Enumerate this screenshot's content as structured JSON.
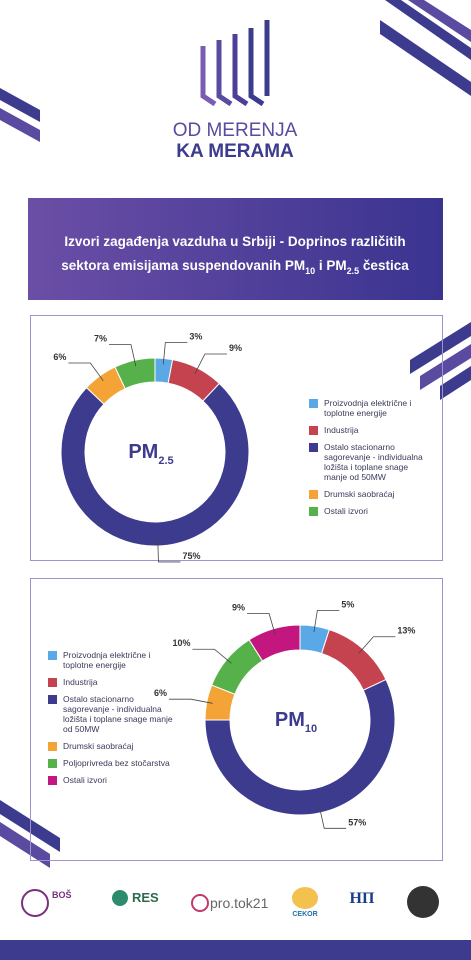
{
  "header": {
    "logo_line1": "OD MERENJA",
    "logo_line2": "KA MERAMA"
  },
  "banner": {
    "title_parts": [
      "Izvori zagađenja vazduha u Srbiji - Doprinos različitih",
      "sektora emisijama suspendovanih PM",
      "10",
      " i PM",
      "2.5",
      " čestica"
    ]
  },
  "chart_data": [
    {
      "type": "donut",
      "center_label": "PM",
      "center_subscript": "2.5",
      "categories": [
        "Proizvodnja električne i toplotne energije",
        "Industrija",
        "Ostalo stacionarno sagorevanje - individualna ložišta i toplane snage manje od 50MW",
        "Drumski saobraćaj",
        "Ostali izvori"
      ],
      "values": [
        3,
        9,
        75,
        6,
        7
      ],
      "value_labels": [
        "3%",
        "9%",
        "75%",
        "6%",
        "7%"
      ],
      "colors": [
        "#5aa9e6",
        "#c4434f",
        "#3d3b8e",
        "#f4a337",
        "#57b14a"
      ]
    },
    {
      "type": "donut",
      "center_label": "PM",
      "center_subscript": "10",
      "categories": [
        "Proizvodnja električne i toplotne energije",
        "Industrija",
        "Ostalo stacionarno sagorevanje - individualna ložišta i toplane snage manje od 50MW",
        "Drumski saobraćaj",
        "Poljoprivreda bez stočarstva",
        "Ostali izvori"
      ],
      "values": [
        5,
        13,
        57,
        6,
        10,
        9
      ],
      "value_labels": [
        "5%",
        "13%",
        "57%",
        "6%",
        "10%",
        "9%"
      ],
      "colors": [
        "#5aa9e6",
        "#c4434f",
        "#3d3b8e",
        "#f4a337",
        "#57b14a",
        "#c3177f"
      ]
    }
  ],
  "footer": {
    "logos": [
      "BOŠ",
      "RES",
      "pro.tok21",
      "CEKOR",
      "НП"
    ]
  }
}
